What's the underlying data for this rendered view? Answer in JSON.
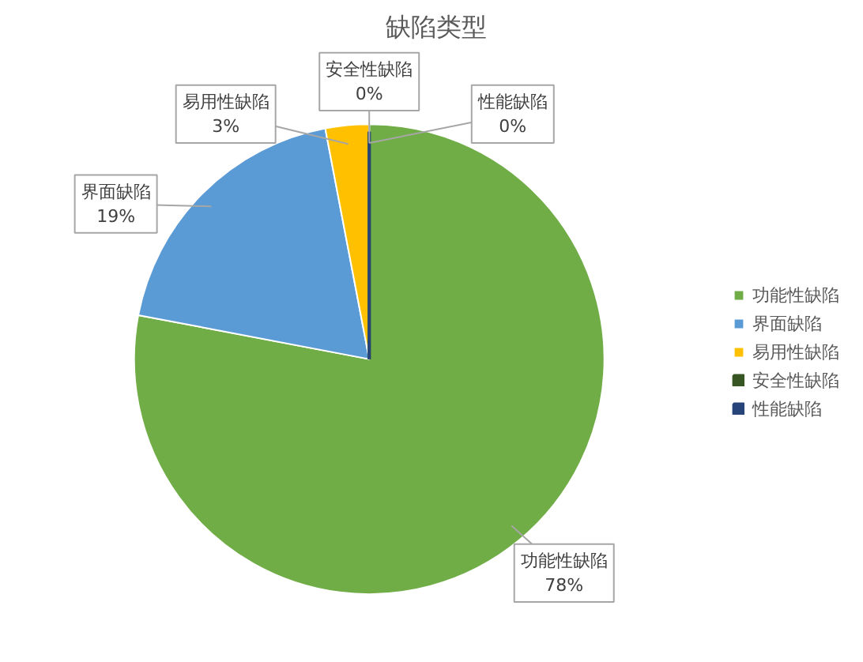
{
  "chart_data": {
    "type": "pie",
    "title": "缺陷类型",
    "categories": [
      "功能性缺陷",
      "界面缺陷",
      "易用性缺陷",
      "安全性缺陷",
      "性能缺陷"
    ],
    "values": [
      78,
      19,
      3,
      0,
      0
    ],
    "colors": [
      "#70ad47",
      "#5b9bd5",
      "#ffc000",
      "#375623",
      "#264478"
    ],
    "value_labels": [
      "78%",
      "19%",
      "3%",
      "0%",
      "0%"
    ],
    "legend": "right"
  }
}
